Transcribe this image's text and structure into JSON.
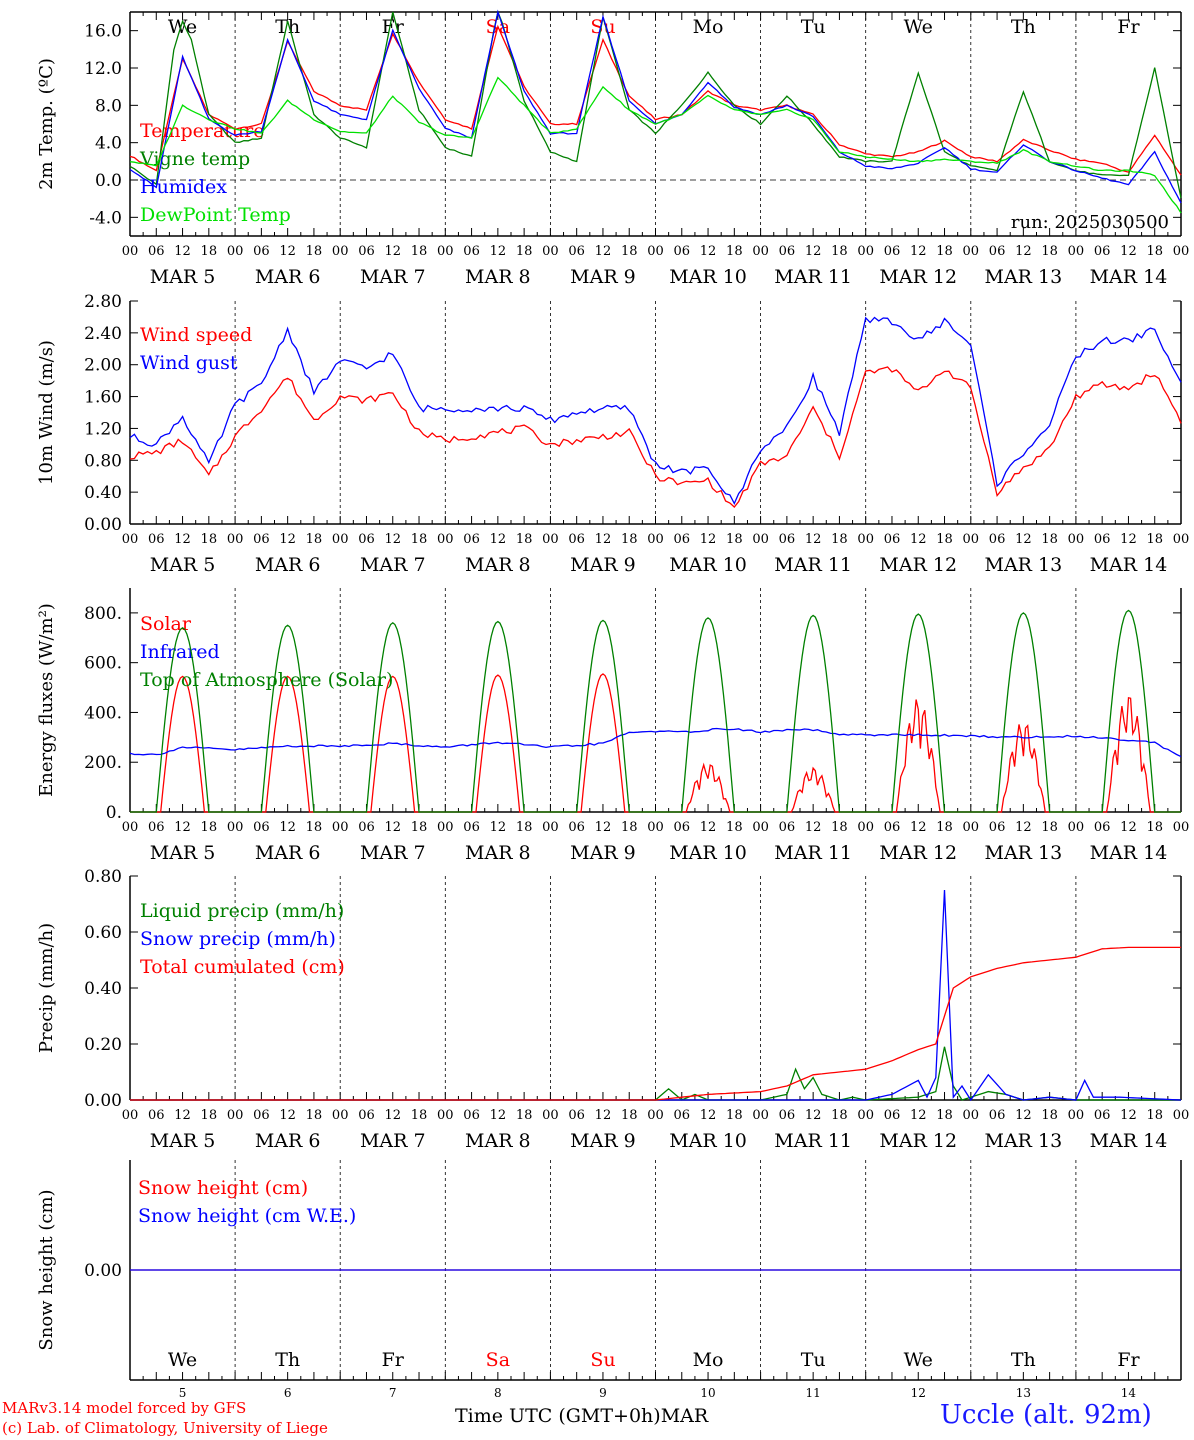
{
  "page": {
    "model_label": "MARv3.14 model forced by GFS",
    "lab_label": "(c) Lab. of Climatology, University of Liege",
    "x_axis_label": "Time UTC (GMT+0h)",
    "month_label": "MAR",
    "site_label": "Uccle (alt. 92m)"
  },
  "colors": {
    "red": "#ff0000",
    "green": "#008000",
    "lightgreen": "#00e000",
    "blue": "#0000ff",
    "axis": "#000000"
  },
  "chart_data": [
    {
      "type": "line",
      "ylabel": "2m Temp. (ºC)",
      "run_label": "run: 2025030500",
      "ylim": [
        -6,
        18
      ],
      "yticks": [
        "16.0",
        "12.0",
        "8.0",
        "4.0",
        "0.0",
        "-4.0"
      ],
      "yticks_values": [
        16,
        12,
        8,
        4,
        0,
        -4
      ],
      "zero_dashed": true,
      "day_labels": [
        "We",
        "Th",
        "Fr",
        "Sa",
        "Su",
        "Mo",
        "Tu",
        "We",
        "Th",
        "Fr"
      ],
      "day_label_colors": [
        "black",
        "black",
        "black",
        "red",
        "red",
        "black",
        "black",
        "black",
        "black",
        "black"
      ],
      "hour_ticks": [
        "00",
        "06",
        "12",
        "18"
      ],
      "date_labels": [
        "MAR  5",
        "MAR  6",
        "MAR  7",
        "MAR  8",
        "MAR  9",
        "MAR 10",
        "MAR 11",
        "MAR 12",
        "MAR 13",
        "MAR 14"
      ],
      "x_unit": "hours since MAR 5 00 UTC",
      "series": [
        {
          "name": "Temperature",
          "color": "red",
          "x": [
            0,
            6,
            12,
            18,
            24,
            30,
            36,
            42,
            48,
            54,
            60,
            66,
            72,
            78,
            84,
            90,
            96,
            102,
            108,
            114,
            120,
            126,
            132,
            138,
            144,
            150,
            156,
            162,
            168,
            174,
            180,
            186,
            192,
            198,
            204,
            210,
            216,
            222,
            228,
            234,
            240
          ],
          "values": [
            2.6,
            1.0,
            13.0,
            7.0,
            5.5,
            6.0,
            14.8,
            9.5,
            8.0,
            7.5,
            15.7,
            10.5,
            6.5,
            5.5,
            16.5,
            10.0,
            6.0,
            6.0,
            15.0,
            9.0,
            6.5,
            7.0,
            9.5,
            8.0,
            7.5,
            8.0,
            7.0,
            3.8,
            2.8,
            2.5,
            3.0,
            4.2,
            2.5,
            2.0,
            4.3,
            3.2,
            2.2,
            1.8,
            0.8,
            4.8,
            0.5
          ]
        },
        {
          "name": "Vigne temp",
          "color": "green",
          "x": [
            0,
            6,
            10,
            12,
            14,
            18,
            24,
            30,
            36,
            42,
            48,
            54,
            60,
            66,
            72,
            78,
            84,
            90,
            96,
            102,
            108,
            114,
            120,
            126,
            132,
            138,
            144,
            150,
            156,
            162,
            168,
            174,
            180,
            186,
            192,
            198,
            204,
            210,
            216,
            222,
            228,
            234,
            240
          ],
          "values": [
            1.5,
            -0.5,
            14.0,
            17.0,
            15.0,
            7.0,
            4.0,
            4.5,
            17.0,
            7.0,
            4.5,
            3.5,
            18.0,
            7.5,
            3.5,
            2.5,
            18.5,
            8.5,
            3.0,
            2.0,
            17.5,
            7.5,
            5.0,
            8.0,
            11.5,
            8.0,
            6.0,
            9.0,
            6.0,
            2.5,
            2.0,
            2.0,
            11.5,
            3.0,
            1.5,
            1.0,
            9.5,
            2.0,
            1.0,
            0.5,
            0.5,
            12.0,
            -2.0
          ]
        },
        {
          "name": "Humidex",
          "color": "blue",
          "x": [
            0,
            6,
            12,
            18,
            24,
            30,
            36,
            42,
            48,
            54,
            60,
            66,
            72,
            78,
            84,
            90,
            96,
            102,
            108,
            114,
            120,
            126,
            132,
            138,
            144,
            150,
            156,
            162,
            168,
            174,
            180,
            186,
            192,
            198,
            204,
            210,
            216,
            222,
            228,
            234,
            240
          ],
          "values": [
            1.2,
            -0.8,
            13.2,
            6.5,
            4.8,
            5.2,
            15.0,
            8.5,
            7.0,
            6.5,
            16.0,
            9.8,
            5.5,
            4.5,
            18.0,
            9.5,
            5.0,
            5.0,
            17.5,
            8.5,
            6.0,
            7.0,
            10.5,
            7.8,
            7.0,
            8.0,
            6.8,
            3.0,
            1.5,
            1.2,
            1.8,
            3.5,
            1.2,
            0.8,
            3.8,
            2.0,
            1.0,
            0.2,
            -0.5,
            3.0,
            -2.5
          ]
        },
        {
          "name": "DewPoint Temp",
          "color": "lightgreen",
          "x": [
            0,
            6,
            12,
            18,
            24,
            30,
            36,
            42,
            48,
            54,
            60,
            66,
            72,
            78,
            84,
            90,
            96,
            102,
            108,
            114,
            120,
            126,
            132,
            138,
            144,
            150,
            156,
            162,
            168,
            174,
            180,
            186,
            192,
            198,
            204,
            210,
            216,
            222,
            228,
            234,
            240
          ],
          "values": [
            2.0,
            1.5,
            8.0,
            6.5,
            5.5,
            5.0,
            8.5,
            6.5,
            5.2,
            5.0,
            9.0,
            6.2,
            4.8,
            4.5,
            11.0,
            8.0,
            5.0,
            5.5,
            10.0,
            7.5,
            6.0,
            7.0,
            9.0,
            7.5,
            7.0,
            7.5,
            6.5,
            3.0,
            2.5,
            2.2,
            2.0,
            2.2,
            2.0,
            1.8,
            3.2,
            2.0,
            1.5,
            1.0,
            1.0,
            0.5,
            -3.5
          ]
        }
      ]
    },
    {
      "type": "line",
      "ylabel": "10m Wind (m/s)",
      "ylim": [
        0,
        2.8
      ],
      "yticks": [
        "2.80",
        "2.40",
        "2.00",
        "1.60",
        "1.20",
        "0.80",
        "0.40",
        "0.00"
      ],
      "yticks_values": [
        2.8,
        2.4,
        2.0,
        1.6,
        1.2,
        0.8,
        0.4,
        0.0
      ],
      "hour_ticks": [
        "00",
        "06",
        "12",
        "18"
      ],
      "date_labels": [
        "MAR  5",
        "MAR  6",
        "MAR  7",
        "MAR  8",
        "MAR  9",
        "MAR 10",
        "MAR 11",
        "MAR 12",
        "MAR 13",
        "MAR 14"
      ],
      "x_unit": "hours since MAR 5 00 UTC",
      "series": [
        {
          "name": "Wind speed",
          "color": "red",
          "x": [
            0,
            6,
            12,
            18,
            24,
            30,
            36,
            42,
            48,
            54,
            60,
            66,
            72,
            78,
            84,
            90,
            96,
            102,
            108,
            114,
            120,
            126,
            132,
            138,
            144,
            150,
            156,
            162,
            168,
            174,
            180,
            186,
            192,
            198,
            204,
            210,
            216,
            222,
            228,
            234,
            240
          ],
          "values": [
            0.85,
            0.9,
            1.05,
            0.6,
            1.1,
            1.45,
            1.85,
            1.3,
            1.6,
            1.55,
            1.65,
            1.15,
            1.05,
            1.1,
            1.15,
            1.2,
            1.0,
            1.05,
            1.1,
            1.15,
            0.6,
            0.5,
            0.55,
            0.2,
            0.75,
            0.85,
            1.45,
            0.85,
            1.9,
            1.95,
            1.65,
            1.95,
            1.7,
            0.4,
            0.7,
            0.95,
            1.6,
            1.75,
            1.7,
            1.9,
            1.3
          ]
        },
        {
          "name": "Wind gust",
          "color": "blue",
          "x": [
            0,
            6,
            12,
            18,
            24,
            30,
            36,
            42,
            48,
            54,
            60,
            66,
            72,
            78,
            84,
            90,
            96,
            102,
            108,
            114,
            120,
            126,
            132,
            138,
            144,
            150,
            156,
            162,
            168,
            174,
            180,
            186,
            192,
            198,
            204,
            210,
            216,
            222,
            228,
            234,
            240
          ],
          "values": [
            1.1,
            1.0,
            1.35,
            0.75,
            1.5,
            1.75,
            2.45,
            1.65,
            2.05,
            1.95,
            2.15,
            1.45,
            1.45,
            1.45,
            1.45,
            1.45,
            1.3,
            1.4,
            1.45,
            1.45,
            0.75,
            0.65,
            0.7,
            0.25,
            0.95,
            1.2,
            1.85,
            1.15,
            2.55,
            2.55,
            2.3,
            2.55,
            2.25,
            0.5,
            0.9,
            1.25,
            2.1,
            2.3,
            2.3,
            2.45,
            1.75
          ]
        }
      ]
    },
    {
      "type": "line",
      "ylabel": "Energy fluxes (W/m²)",
      "ylim": [
        0,
        900
      ],
      "yticks": [
        "800.",
        "600.",
        "400.",
        "200.",
        "0."
      ],
      "yticks_values": [
        800,
        600,
        400,
        200,
        0
      ],
      "hour_ticks": [
        "00",
        "06",
        "12",
        "18"
      ],
      "date_labels": [
        "MAR  5",
        "MAR  6",
        "MAR  7",
        "MAR  8",
        "MAR  9",
        "MAR 10",
        "MAR 11",
        "MAR 12",
        "MAR 13",
        "MAR 14"
      ],
      "x_unit": "hours since MAR 5 00 UTC",
      "series": [
        {
          "name": "Solar",
          "color": "red",
          "daily_peaks": [
            545,
            545,
            545,
            550,
            555,
            200,
            180,
            460,
            370,
            480
          ]
        },
        {
          "name": "Infrared",
          "color": "blue",
          "x": [
            0,
            6,
            12,
            24,
            36,
            48,
            60,
            72,
            84,
            96,
            108,
            114,
            120,
            126,
            132,
            138,
            144,
            150,
            156,
            162,
            168,
            180,
            192,
            204,
            216,
            228,
            234,
            240
          ],
          "values": [
            235,
            230,
            260,
            250,
            265,
            265,
            275,
            260,
            280,
            260,
            275,
            320,
            325,
            320,
            330,
            335,
            320,
            330,
            330,
            310,
            310,
            310,
            305,
            300,
            305,
            290,
            280,
            220
          ]
        },
        {
          "name": "Top of Atmosphere (Solar)",
          "color": "green",
          "daily_peaks": [
            740,
            750,
            760,
            765,
            770,
            780,
            790,
            795,
            800,
            810
          ]
        }
      ]
    },
    {
      "type": "line",
      "ylabel": "Precip (mm/h)",
      "ylim": [
        0,
        0.8
      ],
      "yticks": [
        "0.80",
        "0.60",
        "0.40",
        "0.20",
        "0.00"
      ],
      "yticks_values": [
        0.8,
        0.6,
        0.4,
        0.2,
        0.0
      ],
      "hour_ticks": [
        "00",
        "06",
        "12",
        "18"
      ],
      "date_labels": [
        "MAR  5",
        "MAR  6",
        "MAR  7",
        "MAR  8",
        "MAR  9",
        "MAR 10",
        "MAR 11",
        "MAR 12",
        "MAR 13",
        "MAR 14"
      ],
      "x_unit": "hours since MAR 5 00 UTC",
      "series": [
        {
          "name": "Liquid precip (mm/h)",
          "color": "green",
          "x": [
            0,
            120,
            123,
            126,
            129,
            132,
            144,
            150,
            152,
            154,
            156,
            158,
            162,
            165,
            168,
            180,
            184,
            186,
            188,
            190,
            192,
            196,
            200,
            204,
            210,
            216,
            240
          ],
          "values": [
            0,
            0,
            0.04,
            0.0,
            0.02,
            0.0,
            0.0,
            0.02,
            0.11,
            0.04,
            0.08,
            0.02,
            0.0,
            0.01,
            0.0,
            0.01,
            0.03,
            0.19,
            0.05,
            0.0,
            0.01,
            0.03,
            0.02,
            0.0,
            0.01,
            0.0,
            0.0
          ]
        },
        {
          "name": "Snow precip (mm/h)",
          "color": "blue",
          "x": [
            0,
            168,
            174,
            180,
            182,
            184,
            186,
            188,
            190,
            192,
            196,
            200,
            204,
            210,
            216,
            218,
            220,
            226,
            240
          ],
          "values": [
            0,
            0,
            0.02,
            0.07,
            0.01,
            0.08,
            0.75,
            0.01,
            0.05,
            0.0,
            0.09,
            0.02,
            0.0,
            0.01,
            0.0,
            0.07,
            0.01,
            0.01,
            0.0
          ]
        },
        {
          "name": "Total cumulated (cm)",
          "color": "red",
          "x": [
            0,
            120,
            132,
            144,
            150,
            156,
            162,
            168,
            174,
            180,
            184,
            186,
            188,
            192,
            198,
            204,
            210,
            216,
            222,
            228,
            240
          ],
          "values": [
            0,
            0,
            0.02,
            0.03,
            0.05,
            0.09,
            0.1,
            0.11,
            0.14,
            0.18,
            0.2,
            0.3,
            0.4,
            0.44,
            0.47,
            0.49,
            0.5,
            0.51,
            0.54,
            0.545,
            0.545
          ]
        }
      ]
    },
    {
      "type": "line",
      "ylabel": "Snow height (cm)",
      "ylim": [
        -1,
        1
      ],
      "yticks": [
        "0.00"
      ],
      "yticks_values": [
        0.0
      ],
      "day_labels": [
        "We",
        "Th",
        "Fr",
        "Sa",
        "Su",
        "Mo",
        "Tu",
        "We",
        "Th",
        "Fr"
      ],
      "day_label_colors": [
        "black",
        "black",
        "black",
        "red",
        "red",
        "black",
        "black",
        "black",
        "black",
        "black"
      ],
      "day_numbers": [
        "5",
        "6",
        "7",
        "8",
        "9",
        "10",
        "11",
        "12",
        "13",
        "14"
      ],
      "x_unit": "hours since MAR 5 00 UTC",
      "series": [
        {
          "name": "Snow height (cm)",
          "color": "red",
          "x": [
            0,
            240
          ],
          "values": [
            0,
            0
          ]
        },
        {
          "name": "Snow height (cm W.E.)",
          "color": "blue",
          "x": [
            0,
            240
          ],
          "values": [
            0,
            0
          ]
        }
      ]
    }
  ]
}
